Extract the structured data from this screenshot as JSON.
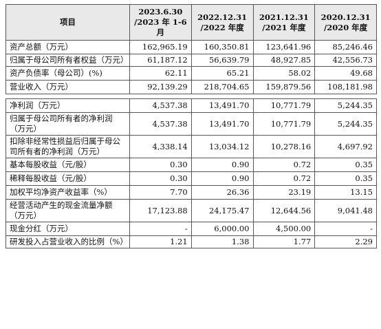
{
  "header": {
    "col0": "项目",
    "periods": [
      {
        "line1": "2023.6.30",
        "line2": "/2023 年 1-6 月"
      },
      {
        "line1": "2022.12.31",
        "line2": "/2022 年度"
      },
      {
        "line1": "2021.12.31",
        "line2": "/2021 年度"
      },
      {
        "line1": "2020.12.31",
        "line2": "/2020 年度"
      }
    ]
  },
  "section1": [
    {
      "label": "资产总额（万元）",
      "values": [
        "162,965.19",
        "160,350.81",
        "123,641.96",
        "85,246.46"
      ]
    },
    {
      "label": "归属于母公司所有者权益（万元）",
      "values": [
        "61,187.12",
        "56,639.79",
        "48,927.85",
        "42,556.73"
      ]
    },
    {
      "label": "资产负债率（母公司）(%)",
      "values": [
        "62.11",
        "65.21",
        "58.02",
        "49.68"
      ]
    },
    {
      "label": "营业收入（万元）",
      "values": [
        "92,139.29",
        "218,704.65",
        "159,879.56",
        "108,181.98"
      ]
    }
  ],
  "section2": [
    {
      "label": "净利润（万元）",
      "values": [
        "4,537.38",
        "13,491.70",
        "10,771.79",
        "5,244.35"
      ]
    },
    {
      "label": "归属于母公司所有者的净利润（万元）",
      "values": [
        "4,537.38",
        "13,491.70",
        "10,771.79",
        "5,244.35"
      ]
    },
    {
      "label": "扣除非经常性损益后归属于母公司所有者的净利润（万元）",
      "values": [
        "4,338.14",
        "13,034.12",
        "10,278.16",
        "4,697.92"
      ]
    },
    {
      "label": "基本每股收益（元/股）",
      "values": [
        "0.30",
        "0.90",
        "0.72",
        "0.35"
      ]
    },
    {
      "label": "稀释每股收益（元/股）",
      "values": [
        "0.30",
        "0.90",
        "0.72",
        "0.35"
      ]
    },
    {
      "label": "加权平均净资产收益率（%）",
      "values": [
        "7.70",
        "26.36",
        "23.19",
        "13.15"
      ]
    },
    {
      "label": "经营活动产生的现金流量净额（万元）",
      "values": [
        "17,123.88",
        "24,175.47",
        "12,644.56",
        "9,041.48"
      ]
    },
    {
      "label": "现金分红（万元）",
      "values": [
        "-",
        "6,000.00",
        "4,500.00",
        "-"
      ]
    },
    {
      "label": "研发投入占营业收入的比例（%）",
      "values": [
        "1.21",
        "1.38",
        "1.77",
        "2.29"
      ]
    }
  ]
}
